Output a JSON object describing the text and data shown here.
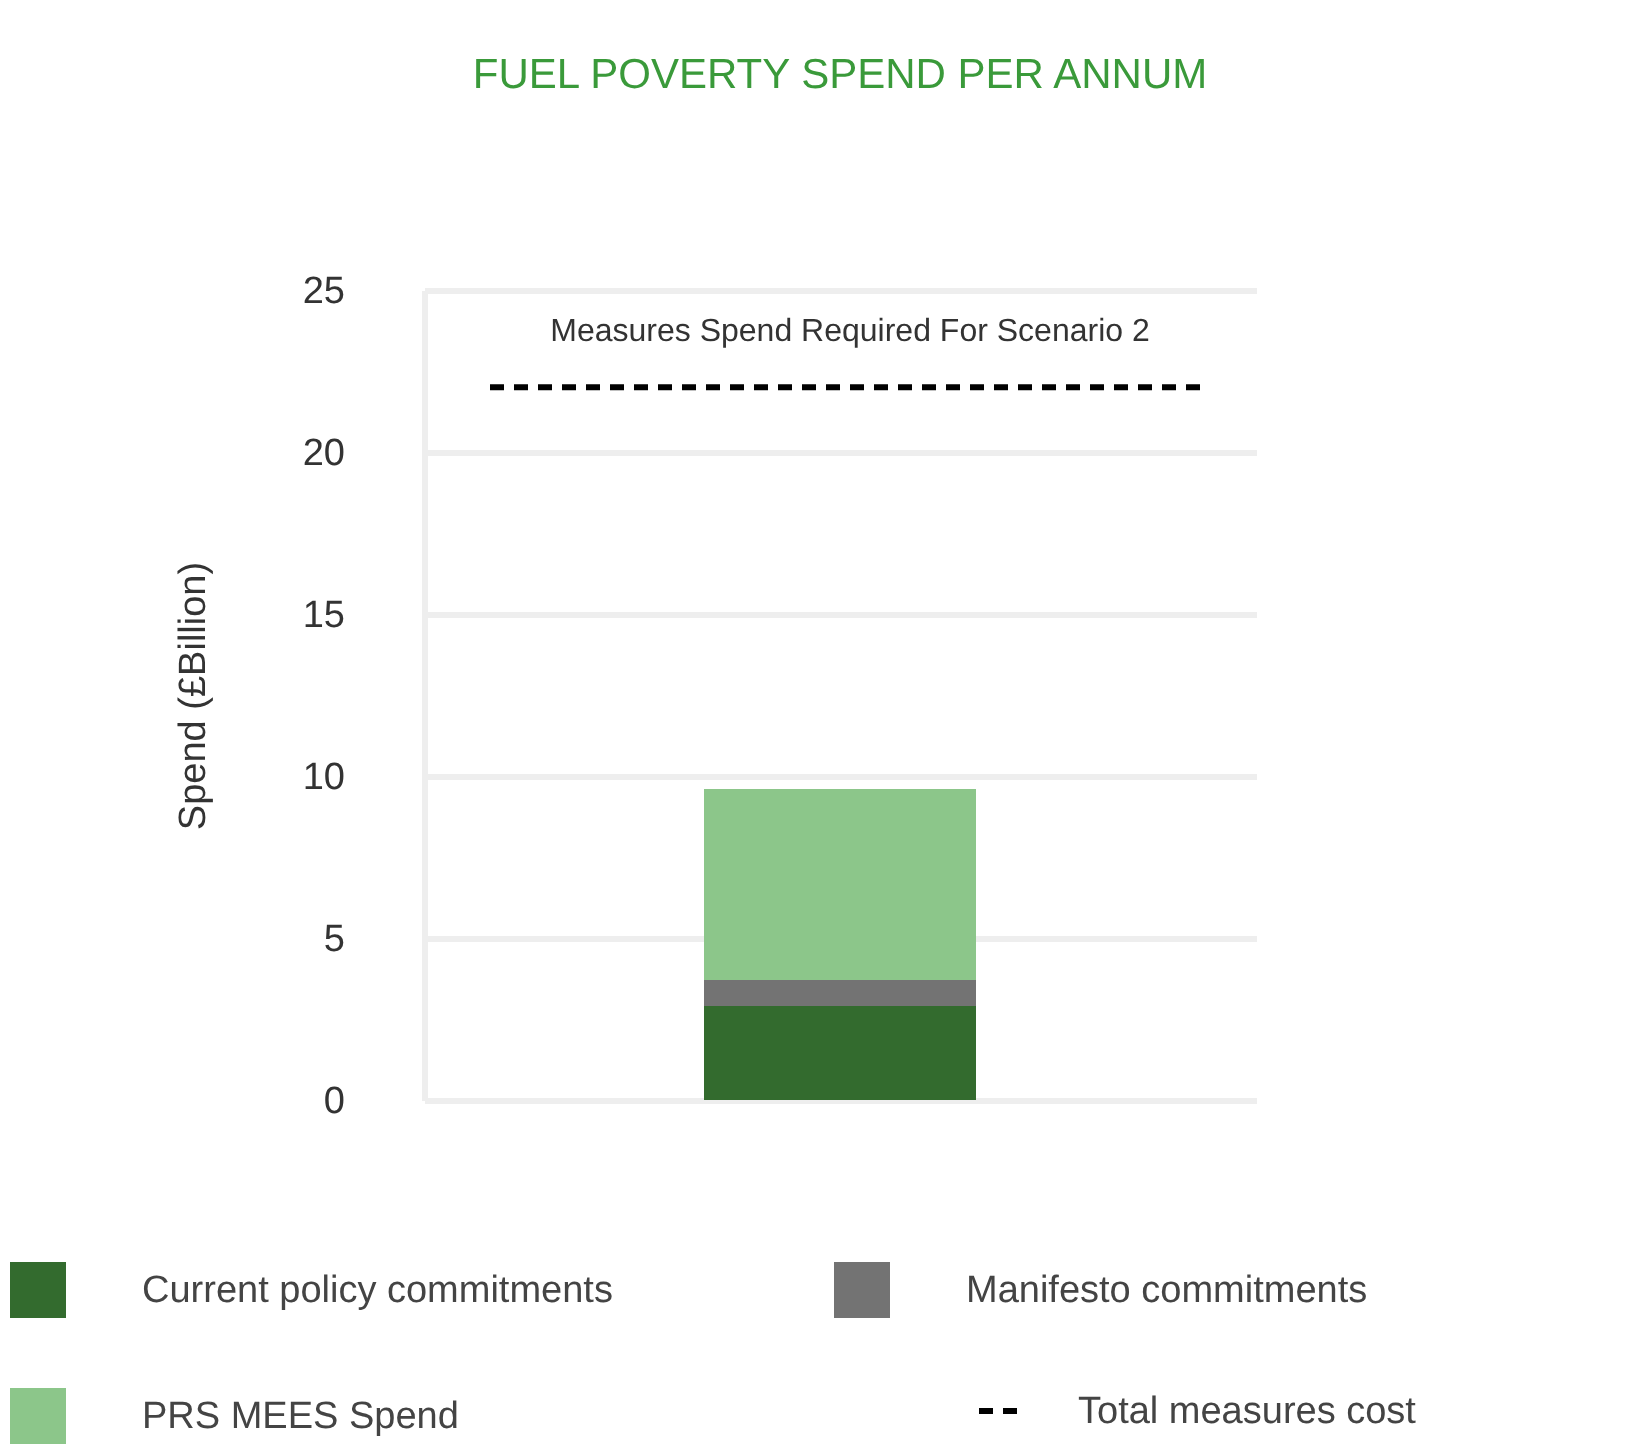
{
  "chart_data": {
    "type": "bar",
    "title": "FUEL POVERTY SPEND PER ANNUM",
    "ylabel": "Spend (£Billion)",
    "categories": [
      null
    ],
    "stacked": true,
    "series": [
      {
        "name": "Current policy commitments",
        "color": "#336b2e",
        "values": [
          2.9
        ]
      },
      {
        "name": "Manifesto commitments",
        "color": "#737373",
        "values": [
          0.8
        ]
      },
      {
        "name": "PRS MEES Spend",
        "color": "#8cc68a",
        "values": [
          5.9
        ]
      }
    ],
    "ylim": [
      0,
      25
    ],
    "yticks": [
      0,
      5,
      10,
      15,
      20,
      25
    ],
    "grid": "y",
    "legend": "bottom",
    "ref_lines": [
      {
        "axis": "y",
        "value": 22,
        "label": "Measures Spend Required For Scenario 2",
        "color": "#000000",
        "line_style": "dashed"
      }
    ],
    "annotations": [
      "Total measures cost"
    ]
  }
}
